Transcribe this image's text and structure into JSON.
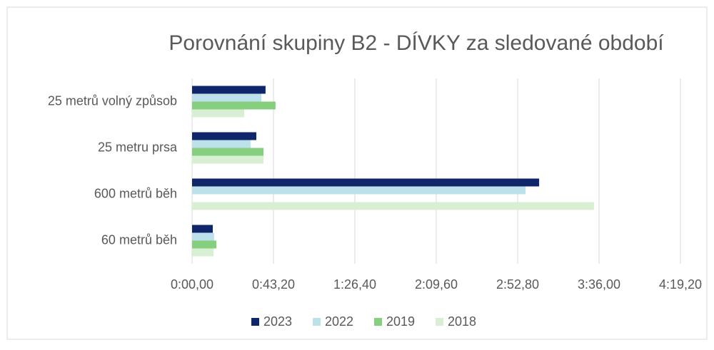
{
  "chart_data": {
    "type": "bar",
    "orientation": "horizontal",
    "title": "Porovnání skupiny B2 - DÍVKY za sledované období",
    "categories": [
      "25 metrů volný způsob",
      "25 metru prsa",
      "600 metrů běh",
      "60 metrů běh"
    ],
    "series": [
      {
        "name": "2023",
        "color": "#10266b",
        "values": [
          39.0,
          34.1,
          184.2,
          11.0
        ]
      },
      {
        "name": "2022",
        "color": "#bce1ea",
        "values": [
          36.8,
          31.1,
          177.0,
          11.7
        ]
      },
      {
        "name": "2019",
        "color": "#86cf7e",
        "values": [
          44.3,
          37.9,
          null,
          12.9
        ]
      },
      {
        "name": "2018",
        "color": "#d9efd3",
        "values": [
          27.7,
          37.9,
          213.3,
          11.4
        ]
      }
    ],
    "xlim": [
      0,
      259.2
    ],
    "xticks": [
      {
        "value": 0,
        "label": "0:00,00"
      },
      {
        "value": 43.2,
        "label": "0:43,20"
      },
      {
        "value": 86.4,
        "label": "1:26,40"
      },
      {
        "value": 129.6,
        "label": "2:09,60"
      },
      {
        "value": 172.8,
        "label": "2:52,80"
      },
      {
        "value": 216,
        "label": "3:36,00"
      },
      {
        "value": 259.2,
        "label": "4:19,20"
      }
    ],
    "grid": true,
    "legend": "bottom"
  }
}
